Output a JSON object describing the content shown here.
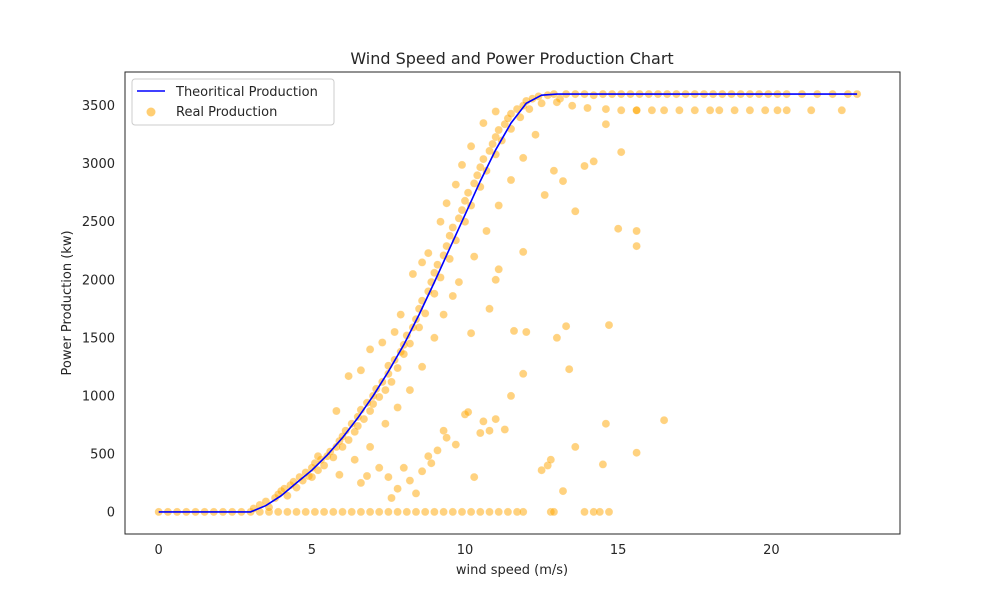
{
  "chart_data": {
    "type": "scatter",
    "title": "Wind Speed and Power Production Chart",
    "xlabel": "wind speed (m/s)",
    "ylabel": "Power Production (kw)",
    "xlim": [
      -1.1,
      24.2
    ],
    "ylim": [
      -190,
      3790
    ],
    "xticks": [
      0,
      5,
      10,
      15,
      20
    ],
    "yticks": [
      0,
      500,
      1000,
      1500,
      2000,
      2500,
      3000,
      3500
    ],
    "grid": false,
    "legend_position": "top-left",
    "legend": [
      "Theoritical Production",
      "Real Production"
    ],
    "line_series": {
      "name": "Theoritical Production",
      "color": "#0000ff",
      "x": [
        0,
        1,
        2,
        3,
        3.5,
        4,
        4.5,
        5,
        5.5,
        6,
        6.5,
        7,
        7.5,
        8,
        8.5,
        9,
        9.5,
        10,
        10.5,
        11,
        11.5,
        12,
        12.5,
        13,
        14,
        15,
        16,
        17,
        18,
        19,
        20,
        21,
        22,
        22.8
      ],
      "y": [
        0,
        0,
        0,
        0,
        55,
        140,
        250,
        360,
        490,
        640,
        810,
        1000,
        1210,
        1440,
        1700,
        1980,
        2270,
        2560,
        2850,
        3120,
        3350,
        3520,
        3590,
        3600,
        3600,
        3600,
        3600,
        3600,
        3600,
        3600,
        3600,
        3600,
        3600,
        3600
      ]
    },
    "scatter_series": {
      "name": "Real Production",
      "color": "#ffa500",
      "points": [
        [
          0,
          0
        ],
        [
          0.3,
          0
        ],
        [
          0.6,
          0
        ],
        [
          0.9,
          0
        ],
        [
          1.2,
          0
        ],
        [
          1.5,
          0
        ],
        [
          1.8,
          0
        ],
        [
          2.1,
          0
        ],
        [
          2.4,
          0
        ],
        [
          2.7,
          0
        ],
        [
          3.0,
          0
        ],
        [
          3.3,
          0
        ],
        [
          3.6,
          0
        ],
        [
          3.9,
          0
        ],
        [
          4.2,
          0
        ],
        [
          4.5,
          0
        ],
        [
          4.8,
          0
        ],
        [
          5.1,
          0
        ],
        [
          5.4,
          0
        ],
        [
          5.7,
          0
        ],
        [
          6.0,
          0
        ],
        [
          6.3,
          0
        ],
        [
          6.6,
          0
        ],
        [
          6.9,
          0
        ],
        [
          7.2,
          0
        ],
        [
          7.5,
          0
        ],
        [
          7.8,
          0
        ],
        [
          8.1,
          0
        ],
        [
          8.4,
          0
        ],
        [
          8.7,
          0
        ],
        [
          9.0,
          0
        ],
        [
          9.3,
          0
        ],
        [
          9.6,
          0
        ],
        [
          9.9,
          0
        ],
        [
          10.2,
          0
        ],
        [
          10.5,
          0
        ],
        [
          10.8,
          0
        ],
        [
          11.1,
          0
        ],
        [
          11.4,
          0
        ],
        [
          11.7,
          0
        ],
        [
          11.9,
          0
        ],
        [
          12.8,
          0
        ],
        [
          12.9,
          0
        ],
        [
          13.9,
          0
        ],
        [
          14.2,
          0
        ],
        [
          14.4,
          0
        ],
        [
          14.7,
          0
        ],
        [
          3.1,
          30
        ],
        [
          3.3,
          60
        ],
        [
          3.5,
          90
        ],
        [
          3.6,
          40
        ],
        [
          3.8,
          120
        ],
        [
          3.9,
          150
        ],
        [
          4.0,
          180
        ],
        [
          4.1,
          200
        ],
        [
          4.2,
          140
        ],
        [
          4.3,
          230
        ],
        [
          4.4,
          260
        ],
        [
          4.5,
          210
        ],
        [
          4.6,
          300
        ],
        [
          4.7,
          270
        ],
        [
          4.8,
          340
        ],
        [
          4.9,
          310
        ],
        [
          5.0,
          380
        ],
        [
          5.0,
          300
        ],
        [
          5.1,
          420
        ],
        [
          5.2,
          360
        ],
        [
          5.3,
          450
        ],
        [
          5.4,
          400
        ],
        [
          5.5,
          480
        ],
        [
          5.6,
          520
        ],
        [
          5.7,
          470
        ],
        [
          5.8,
          560
        ],
        [
          5.9,
          610
        ],
        [
          6.0,
          650
        ],
        [
          6.0,
          560
        ],
        [
          6.1,
          700
        ],
        [
          6.2,
          620
        ],
        [
          6.3,
          760
        ],
        [
          6.4,
          690
        ],
        [
          6.5,
          820
        ],
        [
          6.5,
          740
        ],
        [
          6.6,
          880
        ],
        [
          6.7,
          800
        ],
        [
          6.8,
          940
        ],
        [
          6.9,
          870
        ],
        [
          7.0,
          1000
        ],
        [
          7.0,
          930
        ],
        [
          7.1,
          1060
        ],
        [
          7.2,
          990
        ],
        [
          7.3,
          1120
        ],
        [
          7.4,
          1050
        ],
        [
          7.5,
          1190
        ],
        [
          7.5,
          1260
        ],
        [
          7.6,
          1120
        ],
        [
          7.7,
          1310
        ],
        [
          7.8,
          1240
        ],
        [
          7.9,
          1380
        ],
        [
          8.0,
          1440
        ],
        [
          8.0,
          1360
        ],
        [
          8.1,
          1520
        ],
        [
          8.2,
          1450
        ],
        [
          8.3,
          1590
        ],
        [
          8.4,
          1660
        ],
        [
          8.5,
          1590
        ],
        [
          8.5,
          1750
        ],
        [
          8.6,
          1820
        ],
        [
          8.7,
          1710
        ],
        [
          8.8,
          1900
        ],
        [
          8.9,
          1980
        ],
        [
          9.0,
          1880
        ],
        [
          9.0,
          2060
        ],
        [
          9.1,
          2130
        ],
        [
          9.2,
          2020
        ],
        [
          9.3,
          2210
        ],
        [
          9.4,
          2290
        ],
        [
          9.5,
          2180
        ],
        [
          9.5,
          2380
        ],
        [
          9.6,
          2450
        ],
        [
          9.7,
          2340
        ],
        [
          9.8,
          2530
        ],
        [
          9.9,
          2600
        ],
        [
          10.0,
          2500
        ],
        [
          10.0,
          2680
        ],
        [
          10.1,
          2750
        ],
        [
          10.2,
          2640
        ],
        [
          10.3,
          2830
        ],
        [
          10.4,
          2900
        ],
        [
          10.5,
          2800
        ],
        [
          10.5,
          2970
        ],
        [
          10.6,
          3040
        ],
        [
          10.7,
          2940
        ],
        [
          10.8,
          3110
        ],
        [
          10.9,
          3170
        ],
        [
          11.0,
          3080
        ],
        [
          11.0,
          3230
        ],
        [
          11.1,
          3290
        ],
        [
          11.2,
          3200
        ],
        [
          11.3,
          3340
        ],
        [
          11.4,
          3390
        ],
        [
          11.5,
          3300
        ],
        [
          11.5,
          3430
        ],
        [
          11.7,
          3470
        ],
        [
          11.8,
          3400
        ],
        [
          11.9,
          3500
        ],
        [
          12.0,
          3540
        ],
        [
          12.1,
          3470
        ],
        [
          12.2,
          3560
        ],
        [
          12.4,
          3580
        ],
        [
          12.5,
          3520
        ],
        [
          12.7,
          3590
        ],
        [
          12.9,
          3600
        ],
        [
          13.1,
          3560
        ],
        [
          13.3,
          3600
        ],
        [
          13.6,
          3600
        ],
        [
          13.9,
          3600
        ],
        [
          14.2,
          3590
        ],
        [
          14.5,
          3600
        ],
        [
          14.8,
          3600
        ],
        [
          15.1,
          3600
        ],
        [
          15.4,
          3600
        ],
        [
          15.7,
          3600
        ],
        [
          16.0,
          3600
        ],
        [
          16.3,
          3600
        ],
        [
          16.6,
          3600
        ],
        [
          16.9,
          3600
        ],
        [
          17.2,
          3600
        ],
        [
          17.5,
          3600
        ],
        [
          17.8,
          3600
        ],
        [
          18.1,
          3600
        ],
        [
          18.4,
          3600
        ],
        [
          18.7,
          3600
        ],
        [
          19.0,
          3600
        ],
        [
          19.3,
          3600
        ],
        [
          19.6,
          3600
        ],
        [
          19.9,
          3600
        ],
        [
          20.2,
          3600
        ],
        [
          20.5,
          3600
        ],
        [
          21.0,
          3600
        ],
        [
          21.5,
          3600
        ],
        [
          22.0,
          3600
        ],
        [
          22.5,
          3600
        ],
        [
          22.8,
          3600
        ],
        [
          13.0,
          3530
        ],
        [
          13.5,
          3500
        ],
        [
          14.0,
          3480
        ],
        [
          14.6,
          3470
        ],
        [
          15.1,
          3460
        ],
        [
          15.6,
          3460
        ],
        [
          16.1,
          3460
        ],
        [
          16.5,
          3460
        ],
        [
          17.0,
          3460
        ],
        [
          17.5,
          3460
        ],
        [
          18.0,
          3460
        ],
        [
          18.3,
          3460
        ],
        [
          18.8,
          3460
        ],
        [
          19.3,
          3460
        ],
        [
          19.8,
          3460
        ],
        [
          20.2,
          3460
        ],
        [
          20.5,
          3460
        ],
        [
          21.3,
          3460
        ],
        [
          22.3,
          3460
        ],
        [
          15.6,
          3460
        ],
        [
          5.2,
          480
        ],
        [
          5.8,
          870
        ],
        [
          6.2,
          1170
        ],
        [
          6.6,
          1220
        ],
        [
          6.9,
          1400
        ],
        [
          7.3,
          1460
        ],
        [
          7.7,
          1550
        ],
        [
          7.9,
          1700
        ],
        [
          8.3,
          2050
        ],
        [
          8.6,
          2150
        ],
        [
          8.8,
          2230
        ],
        [
          9.2,
          2500
        ],
        [
          9.4,
          2660
        ],
        [
          9.7,
          2820
        ],
        [
          9.9,
          2990
        ],
        [
          10.2,
          3150
        ],
        [
          10.6,
          3350
        ],
        [
          11.0,
          3450
        ],
        [
          5.9,
          320
        ],
        [
          6.4,
          450
        ],
        [
          6.9,
          560
        ],
        [
          7.4,
          760
        ],
        [
          7.8,
          900
        ],
        [
          8.2,
          1050
        ],
        [
          8.6,
          1250
        ],
        [
          9.0,
          1500
        ],
        [
          9.3,
          1700
        ],
        [
          9.6,
          1860
        ],
        [
          9.8,
          1980
        ],
        [
          10.3,
          2200
        ],
        [
          10.7,
          2420
        ],
        [
          11.1,
          2640
        ],
        [
          11.5,
          2860
        ],
        [
          11.9,
          3050
        ],
        [
          12.3,
          3250
        ],
        [
          6.6,
          250
        ],
        [
          6.8,
          310
        ],
        [
          7.2,
          380
        ],
        [
          7.5,
          300
        ],
        [
          7.6,
          120
        ],
        [
          7.8,
          200
        ],
        [
          8.0,
          380
        ],
        [
          8.2,
          270
        ],
        [
          8.4,
          160
        ],
        [
          8.6,
          350
        ],
        [
          8.8,
          480
        ],
        [
          8.9,
          420
        ],
        [
          9.1,
          530
        ],
        [
          9.3,
          700
        ],
        [
          9.4,
          640
        ],
        [
          9.7,
          580
        ],
        [
          10.0,
          840
        ],
        [
          10.1,
          860
        ],
        [
          10.3,
          300
        ],
        [
          10.5,
          680
        ],
        [
          10.6,
          780
        ],
        [
          10.8,
          700
        ],
        [
          11.0,
          800
        ],
        [
          11.3,
          710
        ],
        [
          11.5,
          1000
        ],
        [
          11.9,
          1190
        ],
        [
          12.0,
          1550
        ],
        [
          10.2,
          1540
        ],
        [
          10.8,
          1750
        ],
        [
          11.0,
          2000
        ],
        [
          11.1,
          2090
        ],
        [
          11.6,
          1560
        ],
        [
          11.9,
          2240
        ],
        [
          12.6,
          2730
        ],
        [
          12.9,
          2940
        ],
        [
          13.2,
          2850
        ],
        [
          13.0,
          1500
        ],
        [
          13.4,
          1230
        ],
        [
          13.3,
          1600
        ],
        [
          13.6,
          560
        ],
        [
          13.2,
          180
        ],
        [
          12.5,
          360
        ],
        [
          12.7,
          400
        ],
        [
          12.8,
          450
        ],
        [
          14.5,
          410
        ],
        [
          14.6,
          760
        ],
        [
          14.7,
          1610
        ],
        [
          15.0,
          2440
        ],
        [
          15.6,
          2420
        ],
        [
          15.6,
          2290
        ],
        [
          15.6,
          510
        ],
        [
          16.5,
          790
        ],
        [
          13.6,
          2590
        ],
        [
          13.9,
          2980
        ],
        [
          14.2,
          3020
        ],
        [
          14.6,
          3340
        ],
        [
          15.1,
          3100
        ]
      ]
    }
  }
}
